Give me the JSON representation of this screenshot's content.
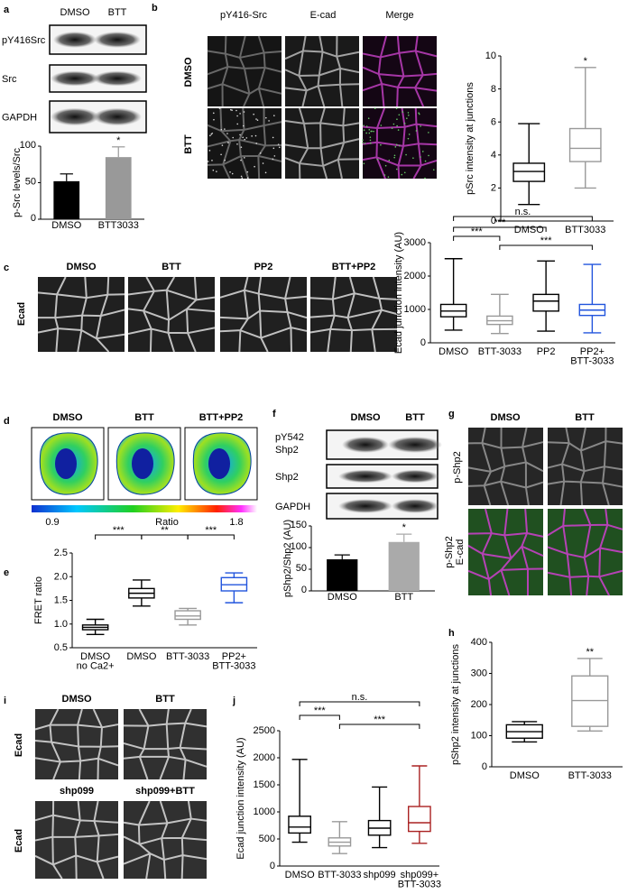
{
  "panels": {
    "a": {
      "label": "a",
      "conditions": [
        "DMSO",
        "BTT"
      ],
      "blots": [
        "pY416Src",
        "Src",
        "GAPDH"
      ]
    },
    "b": {
      "label": "b",
      "channels": [
        "pY416-Src",
        "E-cad",
        "Merge"
      ],
      "conditions": [
        "DMSO",
        "BTT"
      ]
    },
    "c": {
      "label": "c",
      "conditions": [
        "DMSO",
        "BTT",
        "PP2",
        "BTT+PP2"
      ],
      "stain": "Ecad"
    },
    "d": {
      "label": "d",
      "conditions": [
        "DMSO",
        "BTT",
        "BTT+PP2"
      ],
      "scale": {
        "min": 0.9,
        "title": "Ratio",
        "max": 1.8
      }
    },
    "e": {
      "label": "e"
    },
    "f": {
      "label": "f",
      "conditions": [
        "DMSO",
        "BTT"
      ],
      "blots": [
        "pY542\nShp2",
        "Shp2",
        "GAPDH"
      ]
    },
    "g": {
      "label": "g",
      "conditions": [
        "DMSO",
        "BTT"
      ],
      "top_row": "p-Shp2",
      "bottom_row": [
        "p-Shp2",
        "E-cad"
      ]
    },
    "h": {
      "label": "h"
    },
    "i": {
      "label": "i",
      "conditions": [
        "DMSO",
        "BTT",
        "shp099",
        "shp099+BTT"
      ],
      "stain": [
        "Ecad",
        "Ecad"
      ]
    },
    "j": {
      "label": "j"
    }
  },
  "chart_data": [
    {
      "type": "bar",
      "ylabel": "p-Src levels/Src",
      "categories": [
        "DMSO",
        "BTT3033"
      ],
      "values": [
        52,
        85
      ],
      "errors": [
        10,
        14
      ],
      "colors": [
        "#000000",
        "#999999"
      ],
      "ylim": [
        0,
        100
      ],
      "yticks": [
        0,
        50,
        100
      ],
      "annotations": [
        {
          "text": "*",
          "at": 1
        }
      ]
    },
    {
      "type": "box",
      "ylabel": "pSrc intensity at junctions",
      "categories": [
        "DMSO",
        "BTT3033"
      ],
      "boxes": [
        {
          "min": 1,
          "q1": 2.4,
          "median": 3,
          "q3": 3.5,
          "max": 5.9
        },
        {
          "min": 2,
          "q1": 3.6,
          "median": 4.4,
          "q3": 5.6,
          "max": 9.3
        }
      ],
      "colors": [
        "#000000",
        "#999999"
      ],
      "ylim": [
        0,
        10
      ],
      "yticks": [
        0,
        2,
        4,
        6,
        8,
        10
      ],
      "annotations": [
        {
          "text": "*",
          "at": 1
        }
      ]
    },
    {
      "type": "box",
      "ylabel": "Ecad junction intensity (AU)",
      "categories": [
        "DMSO",
        "BTT-3033",
        "PP2",
        "PP2+\nBTT-3033"
      ],
      "boxes": [
        {
          "min": 380,
          "q1": 780,
          "median": 950,
          "q3": 1150,
          "max": 2520
        },
        {
          "min": 280,
          "q1": 550,
          "median": 660,
          "q3": 800,
          "max": 1450
        },
        {
          "min": 350,
          "q1": 950,
          "median": 1250,
          "q3": 1450,
          "max": 2450
        },
        {
          "min": 300,
          "q1": 820,
          "median": 980,
          "q3": 1150,
          "max": 2350
        }
      ],
      "colors": [
        "#000000",
        "#999999",
        "#000000",
        "#2255dd"
      ],
      "ylim": [
        0,
        3000
      ],
      "yticks": [
        0,
        1000,
        2000,
        3000
      ],
      "brackets": [
        {
          "text": "n.s.",
          "between": [
            0,
            3
          ]
        },
        {
          "text": "***",
          "between": [
            0,
            2
          ]
        },
        {
          "text": "***",
          "between": [
            0,
            1
          ]
        },
        {
          "text": "***",
          "between": [
            1,
            3
          ]
        }
      ]
    },
    {
      "type": "box",
      "ylabel": "FRET ratio",
      "categories": [
        "DMSO\nno Ca2+",
        "DMSO",
        "BTT-3033",
        "PP2+\nBTT-3033"
      ],
      "boxes": [
        {
          "min": 0.78,
          "q1": 0.88,
          "median": 0.93,
          "q3": 0.98,
          "max": 1.1
        },
        {
          "min": 1.38,
          "q1": 1.55,
          "median": 1.65,
          "q3": 1.75,
          "max": 1.93
        },
        {
          "min": 0.98,
          "q1": 1.1,
          "median": 1.17,
          "q3": 1.28,
          "max": 1.33
        },
        {
          "min": 1.45,
          "q1": 1.7,
          "median": 1.83,
          "q3": 1.98,
          "max": 2.08
        }
      ],
      "colors": [
        "#000000",
        "#000000",
        "#999999",
        "#2255dd"
      ],
      "ylim": [
        0.5,
        2.5
      ],
      "yticks": [
        0.5,
        {
          "value": 1,
          "label": "1.0"
        },
        1.5,
        {
          "value": 2,
          "label": "2.0"
        },
        2.5
      ],
      "brackets": [
        {
          "text": "***",
          "between": [
            0,
            1
          ]
        },
        {
          "text": "**",
          "between": [
            1,
            2
          ]
        },
        {
          "text": "***",
          "between": [
            2,
            3
          ]
        }
      ]
    },
    {
      "type": "bar",
      "ylabel": "pShp2/Shp2 (AU)",
      "categories": [
        "DMSO",
        "BTT"
      ],
      "values": [
        73,
        113
      ],
      "errors": [
        10,
        18
      ],
      "colors": [
        "#000000",
        "#aaaaaa"
      ],
      "ylim": [
        0,
        150
      ],
      "yticks": [
        0,
        50,
        100,
        150
      ],
      "annotations": [
        {
          "text": "*",
          "at": 1
        }
      ]
    },
    {
      "type": "box",
      "ylabel": "pShp2 intensity at junctions",
      "categories": [
        "DMSO",
        "BTT-3033"
      ],
      "boxes": [
        {
          "min": 80,
          "q1": 92,
          "median": 113,
          "q3": 135,
          "max": 145
        },
        {
          "min": 115,
          "q1": 130,
          "median": 213,
          "q3": 292,
          "max": 348
        }
      ],
      "colors": [
        "#000000",
        "#999999"
      ],
      "ylim": [
        0,
        400
      ],
      "yticks": [
        0,
        100,
        200,
        300,
        400
      ],
      "annotations": [
        {
          "text": "**",
          "at": 1
        }
      ]
    },
    {
      "type": "box",
      "ylabel": "Ecad junction intensity (AU)",
      "categories": [
        "DMSO",
        "BTT-3033",
        "shp099",
        "shp099+\nBTT-3033"
      ],
      "boxes": [
        {
          "min": 440,
          "q1": 610,
          "median": 720,
          "q3": 920,
          "max": 1970
        },
        {
          "min": 230,
          "q1": 370,
          "median": 440,
          "q3": 520,
          "max": 820
        },
        {
          "min": 340,
          "q1": 570,
          "median": 700,
          "q3": 840,
          "max": 1460
        },
        {
          "min": 420,
          "q1": 640,
          "median": 800,
          "q3": 1100,
          "max": 1850
        }
      ],
      "colors": [
        "#000000",
        "#999999",
        "#000000",
        "#aa2222"
      ],
      "ylim": [
        0,
        2500
      ],
      "yticks": [
        0,
        500,
        1000,
        1500,
        2000,
        2500
      ],
      "brackets": [
        {
          "text": "n.s.",
          "between": [
            0,
            3
          ]
        },
        {
          "text": "***",
          "between": [
            0,
            1
          ]
        },
        {
          "text": "***",
          "between": [
            1,
            3
          ]
        }
      ]
    }
  ]
}
